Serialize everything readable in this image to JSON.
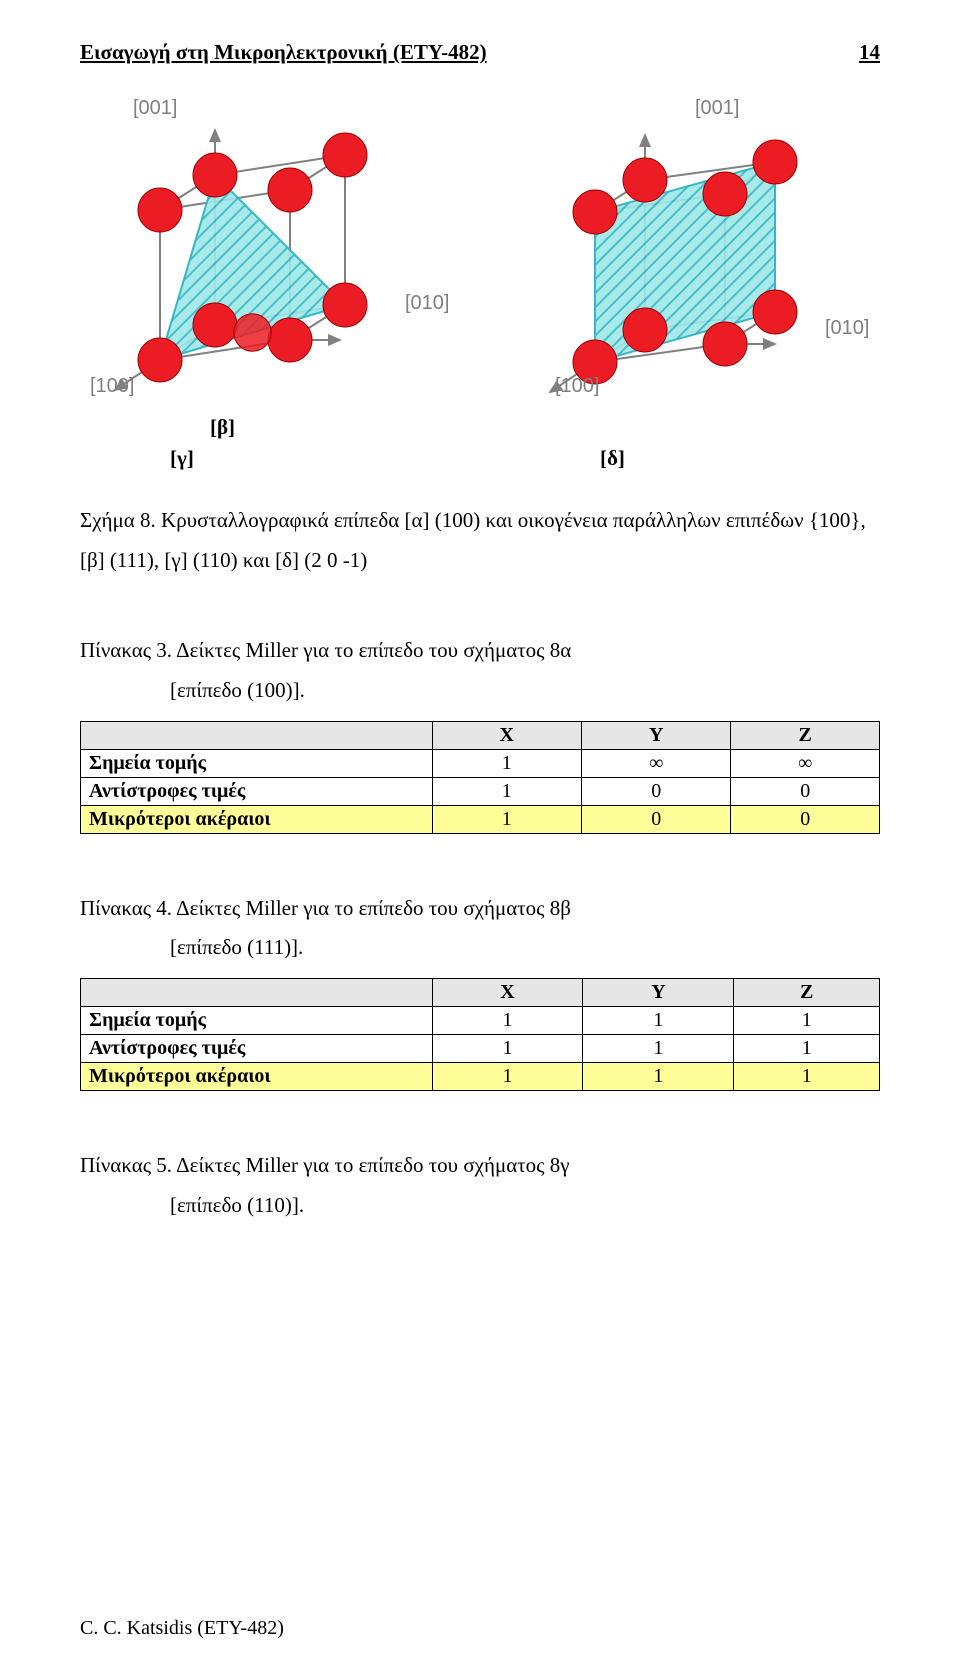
{
  "header": {
    "title": "Εισαγωγή στη Μικροηλεκτρονική (ΕΤΥ-482)",
    "page": "14"
  },
  "axis": {
    "z": "[001]",
    "y": "[010]",
    "x": "[100]"
  },
  "captions": {
    "beta": "[β]",
    "gamma": "[γ]",
    "delta": "[δ]"
  },
  "schemaText": "Σχήμα 8. Κρυσταλλογραφικά επίπεδα [α] (100) και οικογένεια παράλληλων επιπέδων {100},  [β] (111), [γ] (110) και [δ] (2 0 -1)",
  "tables": {
    "t3": {
      "caption_line1": "Πίνακας 3. Δείκτες Miller για το επίπεδο του σχήματος 8α",
      "caption_line2": "[επίπεδο (100)].",
      "cols": [
        "X",
        "Y",
        "Z"
      ],
      "r1": {
        "label": "Σημεία τομής",
        "c": [
          "1",
          "∞",
          "∞"
        ]
      },
      "r2": {
        "label": "Αντίστροφες τιμές",
        "c": [
          "1",
          "0",
          "0"
        ]
      },
      "r3": {
        "label": "Μικρότεροι ακέραιοι",
        "c": [
          "1",
          "0",
          "0"
        ]
      }
    },
    "t4": {
      "caption_line1": "Πίνακας 4. Δείκτες Miller για το επίπεδο του σχήματος 8β",
      "caption_line2": "[επίπεδο (111)].",
      "cols": [
        "X",
        "Y",
        "Z"
      ],
      "r1": {
        "label": "Σημεία τομής",
        "c": [
          "1",
          "1",
          "1"
        ]
      },
      "r2": {
        "label": "Αντίστροφες τιμές",
        "c": [
          "1",
          "1",
          "1"
        ]
      },
      "r3": {
        "label": "Μικρότεροι ακέραιοι",
        "c": [
          "1",
          "1",
          "1"
        ]
      }
    },
    "t5": {
      "caption_line1": "Πίνακας 5. Δείκτες Miller για το επίπεδο του σχήματος 8γ",
      "caption_line2": "[επίπεδο (110)]."
    }
  },
  "footer": "C. C. Katsidis (ETY-482)",
  "style": {
    "atom_fill": "#ec1c24",
    "atom_stroke": "#a00000",
    "plane_fill": "#9fe8e8",
    "plane_hatch": "#35b7c5",
    "edge_color": "#808080",
    "arrow_color": "#808080",
    "table_header_bg": "#e6e6e6",
    "table_highlight_bg": "#ffff99"
  },
  "cube": {
    "left": {
      "vertices3d": [
        [
          0,
          0,
          0
        ],
        [
          1,
          0,
          0
        ],
        [
          1,
          1,
          0
        ],
        [
          0,
          1,
          0
        ],
        [
          0,
          0,
          1
        ],
        [
          1,
          0,
          1
        ],
        [
          1,
          1,
          1
        ],
        [
          0,
          1,
          1
        ]
      ],
      "face_center3d": [
        0.5,
        0.5,
        0
      ],
      "plane_vertices": [
        [
          1,
          0,
          0
        ],
        [
          0,
          1,
          0
        ],
        [
          0,
          0,
          1
        ]
      ],
      "atom_radius": 22
    },
    "right": {
      "vertices3d": [
        [
          0,
          0,
          0
        ],
        [
          1,
          0,
          0
        ],
        [
          1,
          1,
          0
        ],
        [
          0,
          1,
          0
        ],
        [
          0,
          0,
          1
        ],
        [
          1,
          0,
          1
        ],
        [
          1,
          1,
          1
        ],
        [
          0,
          1,
          1
        ]
      ],
      "plane_vertices": [
        [
          1,
          0,
          0
        ],
        [
          0,
          1,
          0
        ],
        [
          0,
          1,
          1
        ],
        [
          1,
          0,
          1
        ]
      ],
      "atom_radius": 22
    }
  }
}
